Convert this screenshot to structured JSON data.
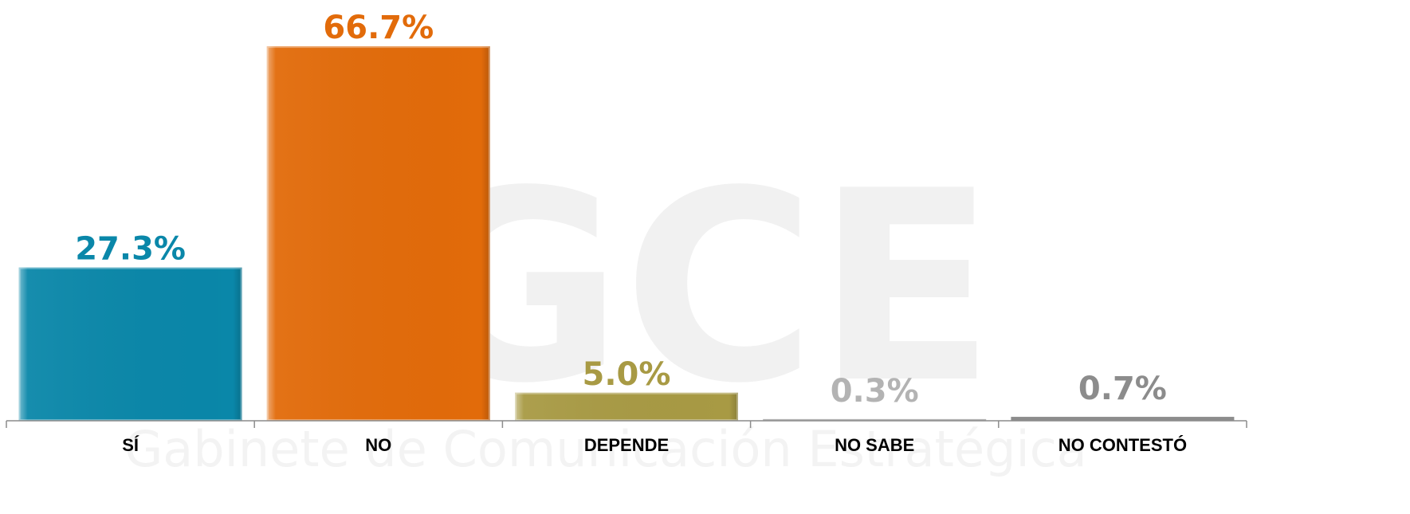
{
  "watermark": {
    "logo_text": "GCE",
    "subtitle": "Gabinete de Comunicación Estratégica"
  },
  "chart_data": {
    "type": "bar",
    "categories": [
      "SÍ",
      "NO",
      "DEPENDE",
      "NO SABE",
      "NO CONTESTÓ"
    ],
    "values": [
      27.3,
      66.7,
      5.0,
      0.3,
      0.7
    ],
    "value_labels": [
      "27.3%",
      "66.7%",
      "5.0%",
      "0.3%",
      "0.7%"
    ],
    "colors": [
      "#0a87a9",
      "#e26b0a",
      "#a89a44",
      "#b3b3b3",
      "#8c8c8c"
    ],
    "label_colors": [
      "#0a87a9",
      "#e26b0a",
      "#a89a44",
      "#b3b3b3",
      "#8c8c8c"
    ],
    "ylim": [
      0,
      68.7
    ],
    "grid": false,
    "legend": "none"
  }
}
